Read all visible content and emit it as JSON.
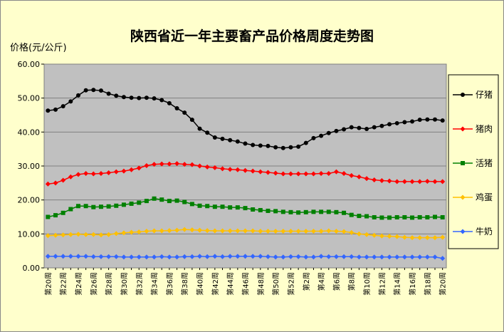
{
  "chart_data": {
    "type": "line",
    "title": "陕西省近一年主要畜产品价格周度走势图",
    "ylabel": "价格(元/公斤)",
    "xlabel": "",
    "ylim": [
      0,
      60
    ],
    "yticks": [
      "0.00",
      "10.00",
      "20.00",
      "30.00",
      "40.00",
      "50.00",
      "60.00"
    ],
    "grid": true,
    "legend_position": "right",
    "plot_background": "#c0c0c0",
    "chart_background": "#ffffcc",
    "categories": [
      "第20周",
      "第21周",
      "第22周",
      "第23周",
      "第24周",
      "第25周",
      "第26周",
      "第27周",
      "第28周",
      "第29周",
      "第30周",
      "第31周",
      "第32周",
      "第33周",
      "第34周",
      "第35周",
      "第36周",
      "第37周",
      "第38周",
      "第39周",
      "第40周",
      "第41周",
      "第42周",
      "第43周",
      "第44周",
      "第45周",
      "第46周",
      "第47周",
      "第48周",
      "第49周",
      "第50周",
      "第51周",
      "第52周",
      "第1周",
      "第2周",
      "第3周",
      "第4周",
      "第5周",
      "第6周",
      "第7周",
      "第8周",
      "第9周",
      "第10周",
      "第11周",
      "第12周",
      "第13周",
      "第14周",
      "第15周",
      "第16周",
      "第17周",
      "第18周",
      "第19周",
      "第20周"
    ],
    "series": [
      {
        "name": "仔猪",
        "color": "#000000",
        "marker": "circle",
        "values": [
          46.3,
          46.6,
          47.6,
          49.0,
          50.8,
          52.3,
          52.4,
          52.2,
          51.3,
          50.7,
          50.3,
          50.1,
          50.0,
          50.1,
          49.9,
          49.4,
          48.5,
          47.0,
          45.7,
          43.6,
          41.0,
          39.8,
          38.4,
          38.0,
          37.6,
          37.2,
          36.6,
          36.2,
          36.0,
          35.9,
          35.5,
          35.3,
          35.5,
          35.7,
          36.8,
          38.2,
          38.9,
          39.7,
          40.3,
          40.8,
          41.4,
          41.2,
          40.9,
          41.4,
          41.8,
          42.3,
          42.6,
          42.9,
          43.1,
          43.6,
          43.7,
          43.7,
          43.4
        ]
      },
      {
        "name": "猪肉",
        "color": "#ff0000",
        "marker": "diamond",
        "values": [
          24.7,
          25.0,
          25.8,
          26.8,
          27.5,
          27.8,
          27.7,
          27.8,
          28.0,
          28.3,
          28.5,
          28.9,
          29.4,
          30.1,
          30.5,
          30.6,
          30.6,
          30.7,
          30.5,
          30.4,
          30.0,
          29.7,
          29.5,
          29.2,
          29.0,
          28.9,
          28.7,
          28.5,
          28.3,
          28.1,
          27.9,
          27.7,
          27.7,
          27.7,
          27.7,
          27.7,
          27.8,
          27.8,
          28.3,
          27.8,
          27.2,
          26.8,
          26.3,
          25.9,
          25.7,
          25.6,
          25.4,
          25.4,
          25.4,
          25.4,
          25.5,
          25.4,
          25.4
        ]
      },
      {
        "name": "活猪",
        "color": "#008000",
        "marker": "square",
        "values": [
          15.0,
          15.5,
          16.2,
          17.3,
          18.2,
          18.2,
          17.9,
          18.0,
          18.1,
          18.3,
          18.6,
          18.9,
          19.2,
          19.7,
          20.4,
          20.1,
          19.7,
          19.8,
          19.4,
          18.8,
          18.3,
          18.2,
          18.0,
          18.0,
          17.8,
          17.8,
          17.6,
          17.2,
          17.0,
          16.8,
          16.7,
          16.5,
          16.4,
          16.3,
          16.4,
          16.5,
          16.5,
          16.5,
          16.4,
          16.2,
          15.6,
          15.3,
          15.2,
          14.9,
          14.8,
          14.8,
          14.9,
          14.9,
          14.8,
          14.9,
          14.9,
          15.0,
          14.9
        ]
      },
      {
        "name": "鸡蛋",
        "color": "#ffc000",
        "marker": "diamond",
        "values": [
          9.5,
          9.6,
          9.7,
          9.8,
          9.9,
          9.8,
          9.8,
          9.7,
          9.8,
          10.1,
          10.3,
          10.5,
          10.6,
          10.8,
          10.9,
          10.9,
          11.0,
          11.1,
          11.3,
          11.2,
          11.1,
          11.0,
          10.9,
          10.9,
          10.9,
          10.9,
          10.9,
          10.9,
          10.8,
          10.8,
          10.8,
          10.8,
          10.8,
          10.8,
          10.8,
          10.8,
          10.8,
          10.9,
          10.8,
          10.7,
          10.4,
          10.0,
          9.8,
          9.6,
          9.4,
          9.3,
          9.2,
          9.0,
          8.9,
          8.9,
          8.9,
          8.9,
          9.0
        ]
      },
      {
        "name": "牛奶",
        "color": "#3366ff",
        "marker": "diamond",
        "values": [
          3.4,
          3.4,
          3.4,
          3.4,
          3.4,
          3.4,
          3.3,
          3.3,
          3.3,
          3.3,
          3.2,
          3.2,
          3.2,
          3.2,
          3.2,
          3.3,
          3.2,
          3.2,
          3.3,
          3.3,
          3.4,
          3.3,
          3.4,
          3.3,
          3.4,
          3.4,
          3.4,
          3.4,
          3.4,
          3.3,
          3.2,
          3.2,
          3.3,
          3.3,
          3.2,
          3.2,
          3.4,
          3.3,
          3.3,
          3.3,
          3.3,
          3.2,
          3.2,
          3.2,
          3.2,
          3.2,
          3.2,
          3.2,
          3.2,
          3.2,
          3.2,
          3.2,
          2.8
        ]
      }
    ]
  }
}
